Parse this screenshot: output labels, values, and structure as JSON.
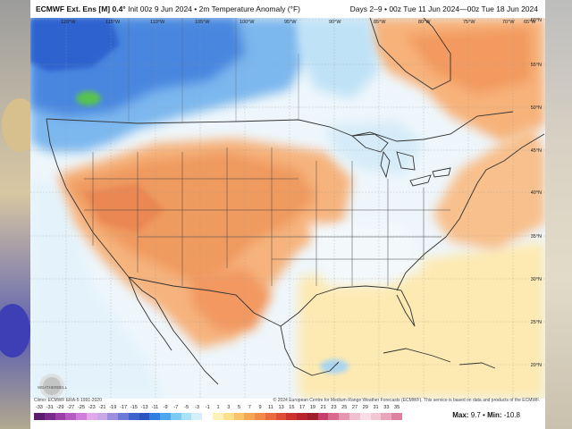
{
  "header": {
    "model": "ECMWF Ext. Ens [M]",
    "resolution": "0.4°",
    "init": "Init 00z 9 Jun 2024",
    "variable": "2m Temperature Anomaly (°F)",
    "period": "Days 2–9",
    "valid_range": "00z Tue 11 Jun 2024—00z Tue 18 Jun 2024"
  },
  "longitude_labels": [
    "120°W",
    "115°W",
    "110°W",
    "105°W",
    "100°W",
    "95°W",
    "90°W",
    "85°W",
    "80°W",
    "75°W",
    "70°W",
    "65°W"
  ],
  "latitude_labels": [
    "60°N",
    "55°N",
    "50°N",
    "45°N",
    "40°N",
    "35°N",
    "30°N",
    "25°N",
    "20°N"
  ],
  "credits": {
    "left": "Climo: ECMWF ERA-5 1991-2020",
    "right": "© 2024 European Centre for Medium-Range Weather Forecasts (ECMWF). This service is based on data and products of the ECMWF."
  },
  "scale": {
    "labels": [
      "-33",
      "-31",
      "-29",
      "-27",
      "-25",
      "-23",
      "-21",
      "-19",
      "-17",
      "-15",
      "-13",
      "-11",
      "-9",
      "-7",
      "-5",
      "-3",
      "-1",
      "1",
      "3",
      "5",
      "7",
      "9",
      "11",
      "13",
      "15",
      "17",
      "19",
      "21",
      "23",
      "25",
      "27",
      "29",
      "31",
      "33",
      "35"
    ],
    "colors": [
      "#5a1d6f",
      "#7a2a8c",
      "#9a3fa8",
      "#b55bc2",
      "#cf7fd9",
      "#e2a8ea",
      "#c9a8e8",
      "#9c8ee0",
      "#6f78d6",
      "#3f63cc",
      "#2a55c0",
      "#2f7fe0",
      "#4ea6ee",
      "#7ccbf4",
      "#a9e2f7",
      "#d4f1fa",
      "#ffffff",
      "#fff2b8",
      "#fde08a",
      "#fbc36b",
      "#f7a656",
      "#f2894a",
      "#e96b3f",
      "#de4d36",
      "#cc3330",
      "#b8242e",
      "#a01d2c",
      "#c53f6a",
      "#d96a8f",
      "#e697b0",
      "#f0c0d0",
      "#f8dde6",
      "#f3c6d4",
      "#e9a6bb",
      "#dc82a1"
    ]
  },
  "stats": {
    "max_label": "Max:",
    "max_value": "9.7",
    "min_label": "Min:",
    "min_value": "-10.8",
    "separator": "•"
  },
  "logo": {
    "text": "WEATHERBELL"
  }
}
